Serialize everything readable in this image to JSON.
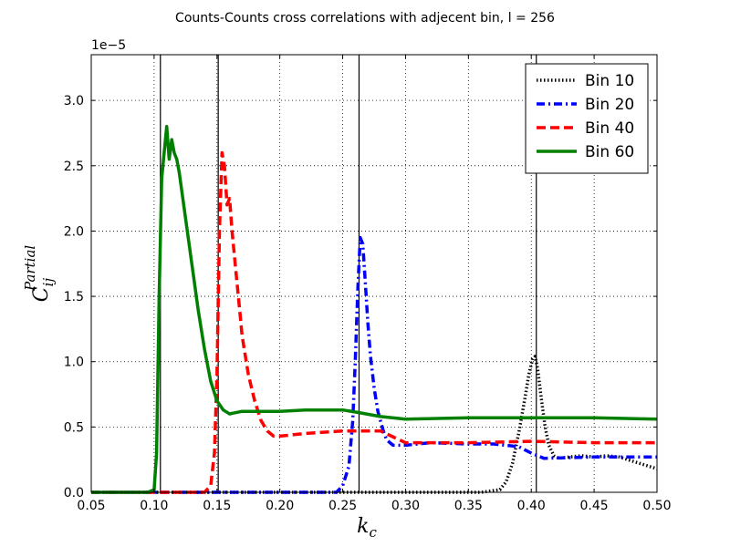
{
  "chart_data": {
    "type": "line",
    "title": "Counts-Counts cross correlations with adjecent bin, l = 256",
    "xlabel": "k",
    "xlabel_sub": "c",
    "ylabel": "C",
    "ylabel_sub": "ij",
    "ylabel_sup": "Partial",
    "y_offset_label": "1e−5",
    "xlim": [
      0.05,
      0.5
    ],
    "ylim": [
      0,
      3.35
    ],
    "x_ticks": [
      0.05,
      0.1,
      0.15,
      0.2,
      0.25,
      0.3,
      0.35,
      0.4,
      0.45,
      0.5
    ],
    "x_tick_labels": [
      "0.05",
      "0.10",
      "0.15",
      "0.20",
      "0.25",
      "0.30",
      "0.35",
      "0.40",
      "0.45",
      "0.50"
    ],
    "y_ticks": [
      0.0,
      0.5,
      1.0,
      1.5,
      2.0,
      2.5,
      3.0
    ],
    "y_tick_labels": [
      "0.0",
      "0.5",
      "1.0",
      "1.5",
      "2.0",
      "2.5",
      "3.0"
    ],
    "grid": true,
    "legend_position": "top-right",
    "vertical_lines": [
      0.105,
      0.151,
      0.263,
      0.404
    ],
    "series": [
      {
        "name": "Bin 10",
        "color": "#000000",
        "style": "dotted",
        "x": [
          0.05,
          0.1,
          0.2,
          0.3,
          0.36,
          0.375,
          0.38,
          0.385,
          0.39,
          0.395,
          0.398,
          0.401,
          0.403,
          0.405,
          0.408,
          0.411,
          0.414,
          0.418,
          0.422,
          0.43,
          0.44,
          0.45,
          0.46,
          0.47,
          0.48,
          0.49,
          0.5
        ],
        "y": [
          0,
          0,
          0,
          0,
          0,
          0.02,
          0.08,
          0.22,
          0.45,
          0.72,
          0.9,
          1.02,
          1.04,
          0.95,
          0.72,
          0.5,
          0.36,
          0.28,
          0.26,
          0.27,
          0.28,
          0.27,
          0.28,
          0.27,
          0.24,
          0.21,
          0.18
        ]
      },
      {
        "name": "Bin 20",
        "color": "#0000ff",
        "style": "dashdot",
        "x": [
          0.05,
          0.1,
          0.2,
          0.245,
          0.25,
          0.255,
          0.258,
          0.26,
          0.262,
          0.264,
          0.266,
          0.268,
          0.27,
          0.272,
          0.275,
          0.278,
          0.282,
          0.285,
          0.29,
          0.3,
          0.32,
          0.35,
          0.37,
          0.39,
          0.4,
          0.41,
          0.45,
          0.5
        ],
        "y": [
          0,
          0,
          0,
          0,
          0.05,
          0.2,
          0.55,
          1.0,
          1.55,
          1.95,
          1.9,
          1.6,
          1.3,
          1.05,
          0.8,
          0.62,
          0.48,
          0.4,
          0.36,
          0.36,
          0.38,
          0.37,
          0.37,
          0.35,
          0.3,
          0.26,
          0.27,
          0.27
        ]
      },
      {
        "name": "Bin 40",
        "color": "#ff0000",
        "style": "dashed",
        "x": [
          0.05,
          0.1,
          0.14,
          0.145,
          0.148,
          0.15,
          0.152,
          0.154,
          0.156,
          0.158,
          0.16,
          0.162,
          0.165,
          0.168,
          0.17,
          0.175,
          0.18,
          0.185,
          0.19,
          0.195,
          0.2,
          0.22,
          0.25,
          0.28,
          0.3,
          0.35,
          0.4,
          0.45,
          0.5
        ],
        "y": [
          0,
          0,
          0,
          0.05,
          0.3,
          0.9,
          2.0,
          2.6,
          2.5,
          2.2,
          2.25,
          2.0,
          1.7,
          1.4,
          1.2,
          0.9,
          0.7,
          0.55,
          0.47,
          0.43,
          0.43,
          0.45,
          0.47,
          0.47,
          0.38,
          0.38,
          0.39,
          0.38,
          0.38
        ]
      },
      {
        "name": "Bin 60",
        "color": "#008000",
        "style": "solid",
        "x": [
          0.05,
          0.095,
          0.1,
          0.102,
          0.104,
          0.106,
          0.108,
          0.11,
          0.112,
          0.114,
          0.116,
          0.118,
          0.12,
          0.125,
          0.13,
          0.135,
          0.14,
          0.145,
          0.15,
          0.155,
          0.16,
          0.17,
          0.18,
          0.2,
          0.22,
          0.25,
          0.263,
          0.28,
          0.3,
          0.35,
          0.4,
          0.45,
          0.5
        ],
        "y": [
          0,
          0,
          0.02,
          0.3,
          1.5,
          2.4,
          2.6,
          2.8,
          2.55,
          2.7,
          2.6,
          2.55,
          2.45,
          2.1,
          1.75,
          1.4,
          1.1,
          0.85,
          0.7,
          0.63,
          0.6,
          0.62,
          0.62,
          0.62,
          0.63,
          0.63,
          0.61,
          0.58,
          0.56,
          0.57,
          0.57,
          0.57,
          0.56
        ]
      }
    ]
  }
}
